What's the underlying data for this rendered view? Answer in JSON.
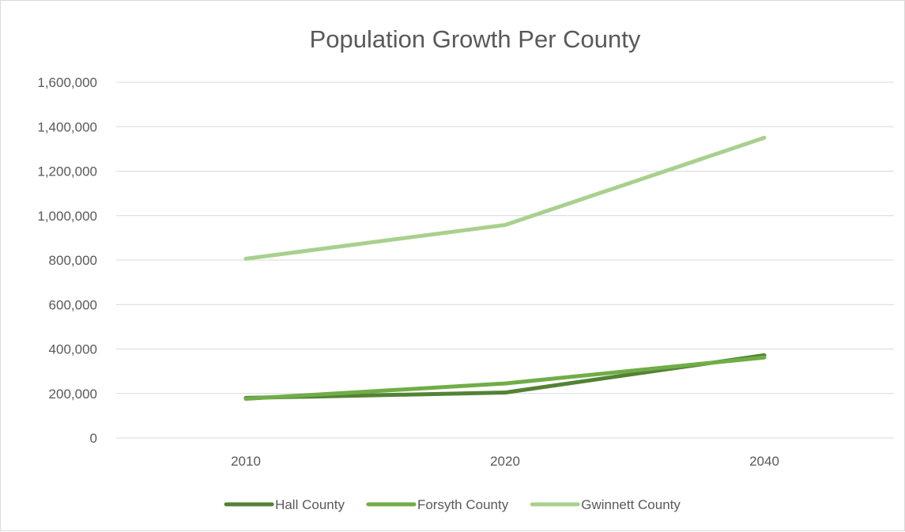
{
  "chart_data": {
    "type": "line",
    "title": "Population Growth Per County",
    "xlabel": "",
    "ylabel": "",
    "categories": [
      "2010",
      "2020",
      "2040"
    ],
    "ylim": [
      0,
      1600000
    ],
    "y_ticks": [
      0,
      200000,
      400000,
      600000,
      800000,
      1000000,
      1200000,
      1400000,
      1600000
    ],
    "y_tick_labels": [
      "0",
      "200,000",
      "400,000",
      "600,000",
      "800,000",
      "1,000,000",
      "1,200,000",
      "1,400,000",
      "1,600,000"
    ],
    "grid": true,
    "legend_position": "bottom",
    "series": [
      {
        "name": "Hall County",
        "color": "#548235",
        "values": [
          180000,
          204000,
          372000
        ]
      },
      {
        "name": "Forsyth County",
        "color": "#70ad47",
        "values": [
          176000,
          245000,
          362000
        ]
      },
      {
        "name": "Gwinnett County",
        "color": "#a9d08e",
        "values": [
          806000,
          958000,
          1350000
        ]
      }
    ]
  }
}
